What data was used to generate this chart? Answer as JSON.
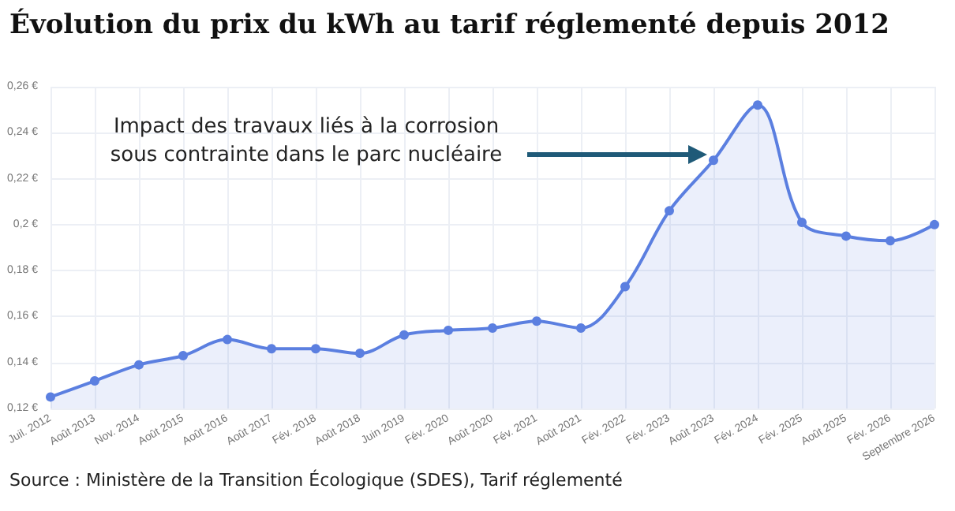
{
  "chart_data": {
    "type": "area",
    "title": "Évolution du prix du kWh au tarif réglementé depuis 2012",
    "categories": [
      "Juil. 2012",
      "Août 2013",
      "Nov. 2014",
      "Août 2015",
      "Août 2016",
      "Août 2017",
      "Fév. 2018",
      "Août 2018",
      "Juin 2019",
      "Fév. 2020",
      "Août 2020",
      "Fév. 2021",
      "Août 2021",
      "Fév. 2022",
      "Fév. 2023",
      "Août 2023",
      "Fév. 2024",
      "Fév. 2025",
      "Août 2025",
      "Fév. 2026",
      "Septembre 2026"
    ],
    "series": [
      {
        "color": "#5b7fe0",
        "values": [
          0.125,
          0.132,
          0.139,
          0.143,
          0.15,
          0.146,
          0.146,
          0.144,
          0.152,
          0.154,
          0.155,
          0.158,
          0.155,
          0.173,
          0.206,
          0.228,
          0.252,
          0.201,
          0.195,
          0.193,
          0.2
        ]
      }
    ],
    "ylim": [
      0.12,
      0.26
    ],
    "yticks": [
      {
        "value": 0.12,
        "label": "0,12 €"
      },
      {
        "value": 0.14,
        "label": "0,14 €"
      },
      {
        "value": 0.16,
        "label": "0,16 €"
      },
      {
        "value": 0.18,
        "label": "0,18 €"
      },
      {
        "value": 0.2,
        "label": "0,2 €"
      },
      {
        "value": 0.22,
        "label": "0,22 €"
      },
      {
        "value": 0.24,
        "label": "0,24 €"
      },
      {
        "value": 0.26,
        "label": "0,26 €"
      }
    ],
    "grid": true,
    "marker": "circle",
    "line_style": "solid",
    "annotations": [
      "Impact des travaux liés à la corrosion sous contrainte dans le parc nucléaire",
      "Source : Ministère de la Transition Écologique (SDES), Tarif réglementé"
    ]
  }
}
